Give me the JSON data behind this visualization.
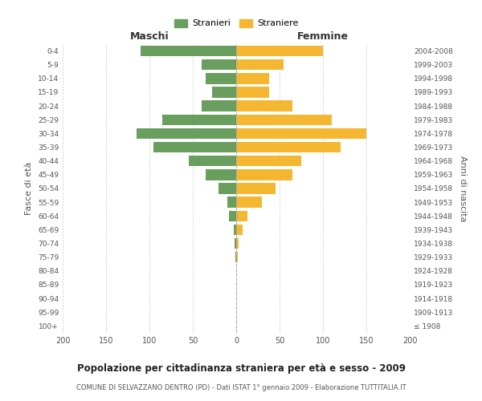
{
  "age_groups": [
    "100+",
    "95-99",
    "90-94",
    "85-89",
    "80-84",
    "75-79",
    "70-74",
    "65-69",
    "60-64",
    "55-59",
    "50-54",
    "45-49",
    "40-44",
    "35-39",
    "30-34",
    "25-29",
    "20-24",
    "15-19",
    "10-14",
    "5-9",
    "0-4"
  ],
  "birth_years": [
    "≤ 1908",
    "1909-1913",
    "1914-1918",
    "1919-1923",
    "1924-1928",
    "1929-1933",
    "1934-1938",
    "1939-1943",
    "1944-1948",
    "1949-1953",
    "1954-1958",
    "1959-1963",
    "1964-1968",
    "1969-1973",
    "1974-1978",
    "1979-1983",
    "1984-1988",
    "1989-1993",
    "1994-1998",
    "1999-2003",
    "2004-2008"
  ],
  "maschi": [
    0,
    0,
    0,
    0,
    0,
    1,
    2,
    3,
    8,
    10,
    20,
    35,
    55,
    95,
    115,
    85,
    40,
    28,
    35,
    40,
    110
  ],
  "femmine": [
    0,
    0,
    0,
    0,
    0,
    2,
    3,
    7,
    13,
    30,
    45,
    65,
    75,
    120,
    150,
    110,
    65,
    38,
    38,
    55,
    100
  ],
  "maschi_color": "#6a9e5e",
  "femmine_color": "#f5b731",
  "background_color": "#ffffff",
  "grid_color": "#cccccc",
  "title": "Popolazione per cittadinanza straniera per età e sesso - 2009",
  "subtitle": "COMUNE DI SELVAZZANO DENTRO (PD) - Dati ISTAT 1° gennaio 2009 - Elaborazione TUTTITALIA.IT",
  "xlabel_left": "Maschi",
  "xlabel_right": "Femmine",
  "ylabel_left": "Fasce di età",
  "ylabel_right": "Anni di nascita",
  "xlim": 200,
  "legend_stranieri": "Stranieri",
  "legend_straniere": "Straniere"
}
